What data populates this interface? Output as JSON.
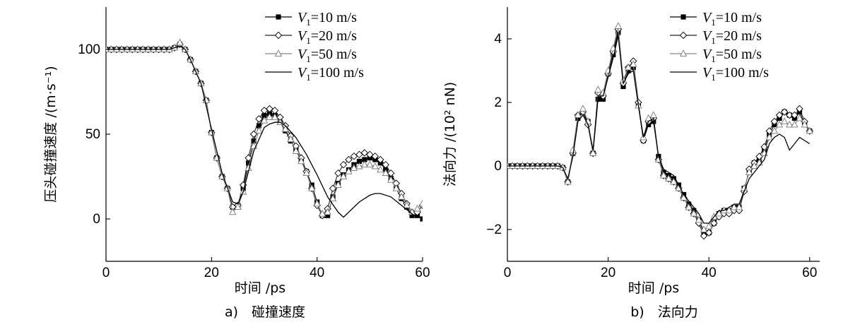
{
  "chart_data": [
    {
      "type": "line",
      "caption": "a)　碰撞速度",
      "xlabel": "时间 /ps",
      "ylabel": "压头碰撞速度 /(m·s⁻¹)",
      "xlim": [
        0,
        60
      ],
      "ylim": [
        -25,
        125
      ],
      "xticks": [
        0,
        20,
        40,
        60
      ],
      "yticks": [
        0,
        50,
        100
      ],
      "legend": "top-right",
      "series": [
        {
          "name": "V1=10 m/s",
          "legend_parts": [
            "V",
            "1",
            "=10 m/s"
          ],
          "marker": "square",
          "x": [
            0,
            1,
            2,
            3,
            4,
            5,
            6,
            7,
            8,
            9,
            10,
            11,
            12,
            13,
            14,
            15,
            16,
            17,
            18,
            19,
            20,
            21,
            22,
            23,
            24,
            25,
            26,
            27,
            28,
            29,
            30,
            31,
            32,
            33,
            34,
            35,
            36,
            37,
            38,
            39,
            40,
            41,
            42,
            43,
            44,
            45,
            46,
            47,
            48,
            49,
            50,
            51,
            52,
            53,
            54,
            55,
            56,
            57,
            58,
            59,
            60
          ],
          "y": [
            100,
            100,
            100,
            100,
            100,
            100,
            100,
            100,
            100,
            100,
            100,
            100,
            100,
            101,
            103,
            100,
            94,
            87,
            80,
            70,
            51,
            36,
            25,
            18,
            7,
            8,
            18,
            33,
            46,
            55,
            61,
            62,
            61,
            57,
            52,
            46,
            41,
            34,
            28,
            20,
            10,
            2,
            2,
            13,
            21,
            26,
            29,
            32,
            34,
            35,
            36,
            35,
            33,
            29,
            24,
            18,
            12,
            7,
            2,
            2,
            0
          ]
        },
        {
          "name": "V1=20 m/s",
          "legend_parts": [
            "V",
            "1",
            "=20 m/s"
          ],
          "marker": "diamond",
          "x": [
            0,
            1,
            2,
            3,
            4,
            5,
            6,
            7,
            8,
            9,
            10,
            11,
            12,
            13,
            14,
            15,
            16,
            17,
            18,
            19,
            20,
            21,
            22,
            23,
            24,
            25,
            26,
            27,
            28,
            29,
            30,
            31,
            32,
            33,
            34,
            35,
            36,
            37,
            38,
            39,
            40,
            41,
            42,
            43,
            44,
            45,
            46,
            47,
            48,
            49,
            50,
            51,
            52,
            53,
            54,
            55,
            56,
            57,
            58,
            59,
            60
          ],
          "y": [
            100,
            100,
            100,
            100,
            100,
            100,
            100,
            100,
            100,
            100,
            100,
            100,
            100,
            101,
            103,
            100,
            94,
            87,
            80,
            70,
            51,
            36,
            25,
            18,
            7,
            8,
            20,
            36,
            50,
            59,
            64,
            65,
            64,
            60,
            55,
            49,
            43,
            36,
            28,
            18,
            8,
            2,
            6,
            18,
            27,
            32,
            35,
            37,
            38,
            39,
            38,
            37,
            35,
            32,
            27,
            21,
            15,
            9,
            4,
            4,
            8
          ]
        },
        {
          "name": "V1=50 m/s",
          "legend_parts": [
            "V",
            "1",
            "=50 m/s"
          ],
          "marker": "triangle",
          "x": [
            0,
            1,
            2,
            3,
            4,
            5,
            6,
            7,
            8,
            9,
            10,
            11,
            12,
            13,
            14,
            15,
            16,
            17,
            18,
            19,
            20,
            21,
            22,
            23,
            24,
            25,
            26,
            27,
            28,
            29,
            30,
            31,
            32,
            33,
            34,
            35,
            36,
            37,
            38,
            39,
            40,
            41,
            42,
            43,
            44,
            45,
            46,
            47,
            48,
            49,
            50,
            51,
            52,
            53,
            54,
            55,
            56,
            57,
            58,
            59,
            60
          ],
          "y": [
            100,
            100,
            100,
            100,
            100,
            100,
            100,
            100,
            100,
            100,
            100,
            100,
            100,
            101,
            104,
            100,
            94,
            87,
            80,
            70,
            51,
            36,
            25,
            18,
            4,
            7,
            16,
            30,
            43,
            52,
            58,
            60,
            60,
            57,
            53,
            47,
            40,
            34,
            27,
            18,
            9,
            3,
            4,
            12,
            20,
            25,
            28,
            30,
            31,
            32,
            32,
            31,
            29,
            27,
            23,
            18,
            13,
            8,
            4,
            6,
            9
          ]
        },
        {
          "name": "V1=100 m/s",
          "legend_parts": [
            "V",
            "1",
            "=100 m/s"
          ],
          "marker": "none",
          "x": [
            0,
            2,
            4,
            6,
            8,
            10,
            12,
            13,
            14,
            15,
            16,
            18,
            20,
            22,
            24,
            25,
            26,
            28,
            30,
            31,
            32,
            33,
            34,
            36,
            38,
            40,
            42,
            44,
            45,
            46,
            48,
            50,
            51,
            52,
            54,
            56,
            58,
            59,
            60
          ],
          "y": [
            100,
            100,
            100,
            100,
            100,
            100,
            100,
            101,
            102,
            100,
            94,
            80,
            53,
            27,
            10,
            9,
            16,
            40,
            54,
            56,
            57,
            57,
            55,
            48,
            38,
            26,
            13,
            4,
            1,
            4,
            10,
            14,
            15,
            15,
            13,
            8,
            3,
            1,
            1
          ]
        }
      ]
    },
    {
      "type": "line",
      "caption": "b)　法向力",
      "xlabel": "时间 /ps",
      "ylabel": "法向力 /(10² nN)",
      "xlim": [
        0,
        62
      ],
      "ylim": [
        -3,
        5
      ],
      "xticks": [
        0,
        20,
        40,
        60
      ],
      "yticks": [
        -2,
        0,
        2,
        4
      ],
      "legend": "top-right",
      "series": [
        {
          "name": "V1=10 m/s",
          "legend_parts": [
            "V",
            "1",
            "=10 m/s"
          ],
          "marker": "square",
          "x": [
            0,
            1,
            2,
            3,
            4,
            5,
            6,
            7,
            8,
            9,
            10,
            11,
            12,
            13,
            14,
            15,
            16,
            17,
            18,
            19,
            20,
            21,
            22,
            23,
            24,
            25,
            26,
            27,
            28,
            29,
            30,
            31,
            32,
            33,
            34,
            35,
            36,
            37,
            38,
            39,
            40,
            41,
            42,
            43,
            44,
            45,
            46,
            47,
            48,
            49,
            50,
            51,
            52,
            53,
            54,
            55,
            56,
            57,
            58,
            59,
            60
          ],
          "y": [
            0,
            0,
            0,
            0,
            0,
            0,
            0,
            0,
            0,
            0,
            0,
            -0.05,
            -0.5,
            0.4,
            1.5,
            1.7,
            1.4,
            0.4,
            2.1,
            2.1,
            2.9,
            3.5,
            4.2,
            2.5,
            3.0,
            3.1,
            1.9,
            0.8,
            1.3,
            1.4,
            0.3,
            -0.2,
            -0.3,
            -0.4,
            -0.6,
            -0.9,
            -1.2,
            -1.4,
            -1.7,
            -2.1,
            -2.1,
            -1.8,
            -1.5,
            -1.4,
            -1.4,
            -1.3,
            -1.3,
            -0.7,
            -0.2,
            0.1,
            0.2,
            0.5,
            1.0,
            1.3,
            1.5,
            1.7,
            1.6,
            1.5,
            1.7,
            1.3,
            1.1
          ]
        },
        {
          "name": "V1=20 m/s",
          "legend_parts": [
            "V",
            "1",
            "=20 m/s"
          ],
          "marker": "diamond",
          "x": [
            0,
            1,
            2,
            3,
            4,
            5,
            6,
            7,
            8,
            9,
            10,
            11,
            12,
            13,
            14,
            15,
            16,
            17,
            18,
            19,
            20,
            21,
            22,
            23,
            24,
            25,
            26,
            27,
            28,
            29,
            30,
            31,
            32,
            33,
            34,
            35,
            36,
            37,
            38,
            39,
            40,
            41,
            42,
            43,
            44,
            45,
            46,
            47,
            48,
            49,
            50,
            51,
            52,
            53,
            54,
            55,
            56,
            57,
            58,
            59,
            60
          ],
          "y": [
            0,
            0,
            0,
            0,
            0,
            0,
            0,
            0,
            0,
            0,
            0,
            -0.05,
            -0.5,
            0.4,
            1.6,
            1.7,
            1.3,
            0.4,
            2.3,
            2.2,
            2.9,
            3.6,
            4.3,
            2.6,
            3.1,
            3.3,
            2.0,
            0.8,
            1.4,
            1.5,
            0.2,
            -0.3,
            -0.4,
            -0.5,
            -0.7,
            -1.0,
            -1.3,
            -1.5,
            -1.8,
            -2.2,
            -2.1,
            -1.8,
            -1.6,
            -1.5,
            -1.5,
            -1.4,
            -1.4,
            -0.8,
            -0.1,
            0.1,
            0.3,
            0.6,
            1.1,
            1.4,
            1.6,
            1.7,
            1.6,
            1.6,
            1.8,
            1.4,
            1.1
          ]
        },
        {
          "name": "V1=50 m/s",
          "legend_parts": [
            "V",
            "1",
            "=50 m/s"
          ],
          "marker": "triangle",
          "x": [
            0,
            1,
            2,
            3,
            4,
            5,
            6,
            7,
            8,
            9,
            10,
            11,
            12,
            13,
            14,
            15,
            16,
            17,
            18,
            19,
            20,
            21,
            22,
            23,
            24,
            25,
            26,
            27,
            28,
            29,
            30,
            31,
            32,
            33,
            34,
            35,
            36,
            37,
            38,
            39,
            40,
            41,
            42,
            43,
            44,
            45,
            46,
            47,
            48,
            49,
            50,
            51,
            52,
            53,
            54,
            55,
            56,
            57,
            58,
            59,
            60
          ],
          "y": [
            0,
            0,
            0,
            0,
            0,
            0,
            0,
            0,
            0,
            0,
            0,
            -0.05,
            -0.5,
            0.5,
            1.6,
            1.8,
            1.4,
            0.4,
            2.4,
            2.3,
            3.0,
            3.7,
            4.4,
            2.7,
            3.1,
            3.2,
            1.9,
            0.9,
            1.5,
            1.6,
            0.2,
            -0.3,
            -0.4,
            -0.5,
            -0.7,
            -1.0,
            -1.3,
            -1.5,
            -1.7,
            -2.0,
            -1.9,
            -1.6,
            -1.5,
            -1.4,
            -1.4,
            -1.3,
            -1.3,
            -0.7,
            -0.2,
            0.0,
            0.1,
            0.4,
            0.9,
            1.1,
            1.3,
            1.4,
            1.3,
            1.3,
            1.5,
            1.3,
            1.1
          ]
        },
        {
          "name": "V1=100 m/s",
          "legend_parts": [
            "V",
            "1",
            "=100 m/s"
          ],
          "marker": "none",
          "x": [
            0,
            2,
            4,
            6,
            8,
            10,
            11,
            12,
            13,
            14,
            15,
            16,
            17,
            18,
            19,
            20,
            21,
            22,
            23,
            24,
            25,
            26,
            27,
            28,
            29,
            30,
            31,
            32,
            33,
            34,
            35,
            36,
            37,
            38,
            39,
            40,
            41,
            42,
            43,
            44,
            45,
            46,
            47,
            48,
            49,
            50,
            51,
            52,
            53,
            54,
            55,
            56,
            57,
            58,
            59,
            60
          ],
          "y": [
            0,
            0,
            0,
            0,
            0,
            0,
            -0.05,
            -0.4,
            0.3,
            1.4,
            1.6,
            1.3,
            0.5,
            2.2,
            2.2,
            2.8,
            3.4,
            4.1,
            2.6,
            2.9,
            3.0,
            1.9,
            0.9,
            1.4,
            1.5,
            0.3,
            -0.1,
            -0.2,
            -0.3,
            -0.6,
            -0.9,
            -1.1,
            -1.3,
            -1.5,
            -1.8,
            -1.8,
            -1.6,
            -1.4,
            -1.4,
            -1.3,
            -1.2,
            -1.2,
            -0.8,
            -0.4,
            -0.2,
            0.0,
            0.2,
            0.7,
            0.9,
            1.0,
            0.9,
            0.5,
            0.7,
            0.9,
            0.8,
            0.7
          ]
        }
      ]
    }
  ]
}
